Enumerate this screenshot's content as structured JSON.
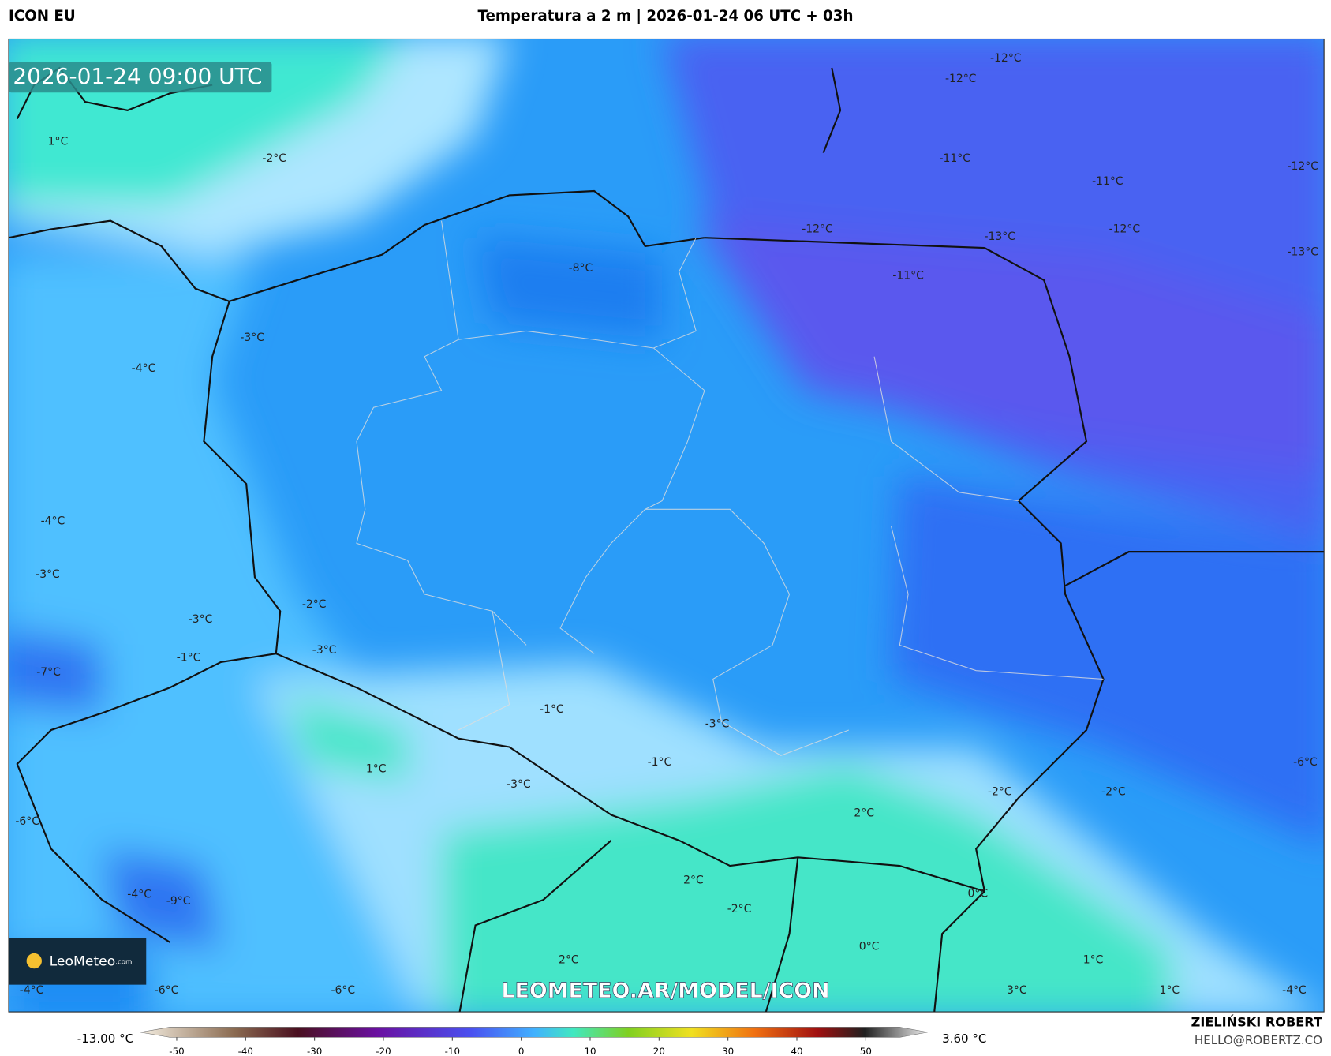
{
  "header": {
    "model": "ICON EU",
    "title": "Temperatura a 2 m | 2026-01-24 06 UTC + 03h"
  },
  "map": {
    "timestamp": "2026-01-24 09:00 UTC",
    "watermark": "LEOMETEO.AR/MODEL/ICON",
    "logo": "LeoMeteo",
    "logo_suffix": ".com",
    "labels": [
      "-12°C",
      "-12°C",
      "1°C",
      "-2°C",
      "-11°C",
      "-11°C",
      "-12°C",
      "-12°C",
      "-12°C",
      "-13°C",
      "-13°C",
      "-8°C",
      "-11°C",
      "-3°C",
      "-4°C",
      "-4°C",
      "-3°C",
      "-2°C",
      "-3°C",
      "-1°C",
      "-3°C",
      "-7°C",
      "-1°C",
      "-3°C",
      "1°C",
      "-1°C",
      "-3°C",
      "-6°C",
      "-2°C",
      "-2°C",
      "2°C",
      "-6°C",
      "2°C",
      "0°C",
      "-4°C",
      "-9°C",
      "-2°C",
      "0°C",
      "2°C",
      "1°C",
      "-4°C",
      "-6°C",
      "-6°C",
      "3°C",
      "1°C",
      "-4°C"
    ]
  },
  "colorbar": {
    "min_label": "-13.00 °C",
    "max_label": "3.60 °C",
    "ticks": [
      -50,
      -40,
      -30,
      -20,
      -10,
      0,
      10,
      20,
      30,
      40,
      50
    ]
  },
  "footer": {
    "author": "ZIELIŃSKI ROBERT",
    "email": "HELLO@ROBERTZ.CO"
  }
}
